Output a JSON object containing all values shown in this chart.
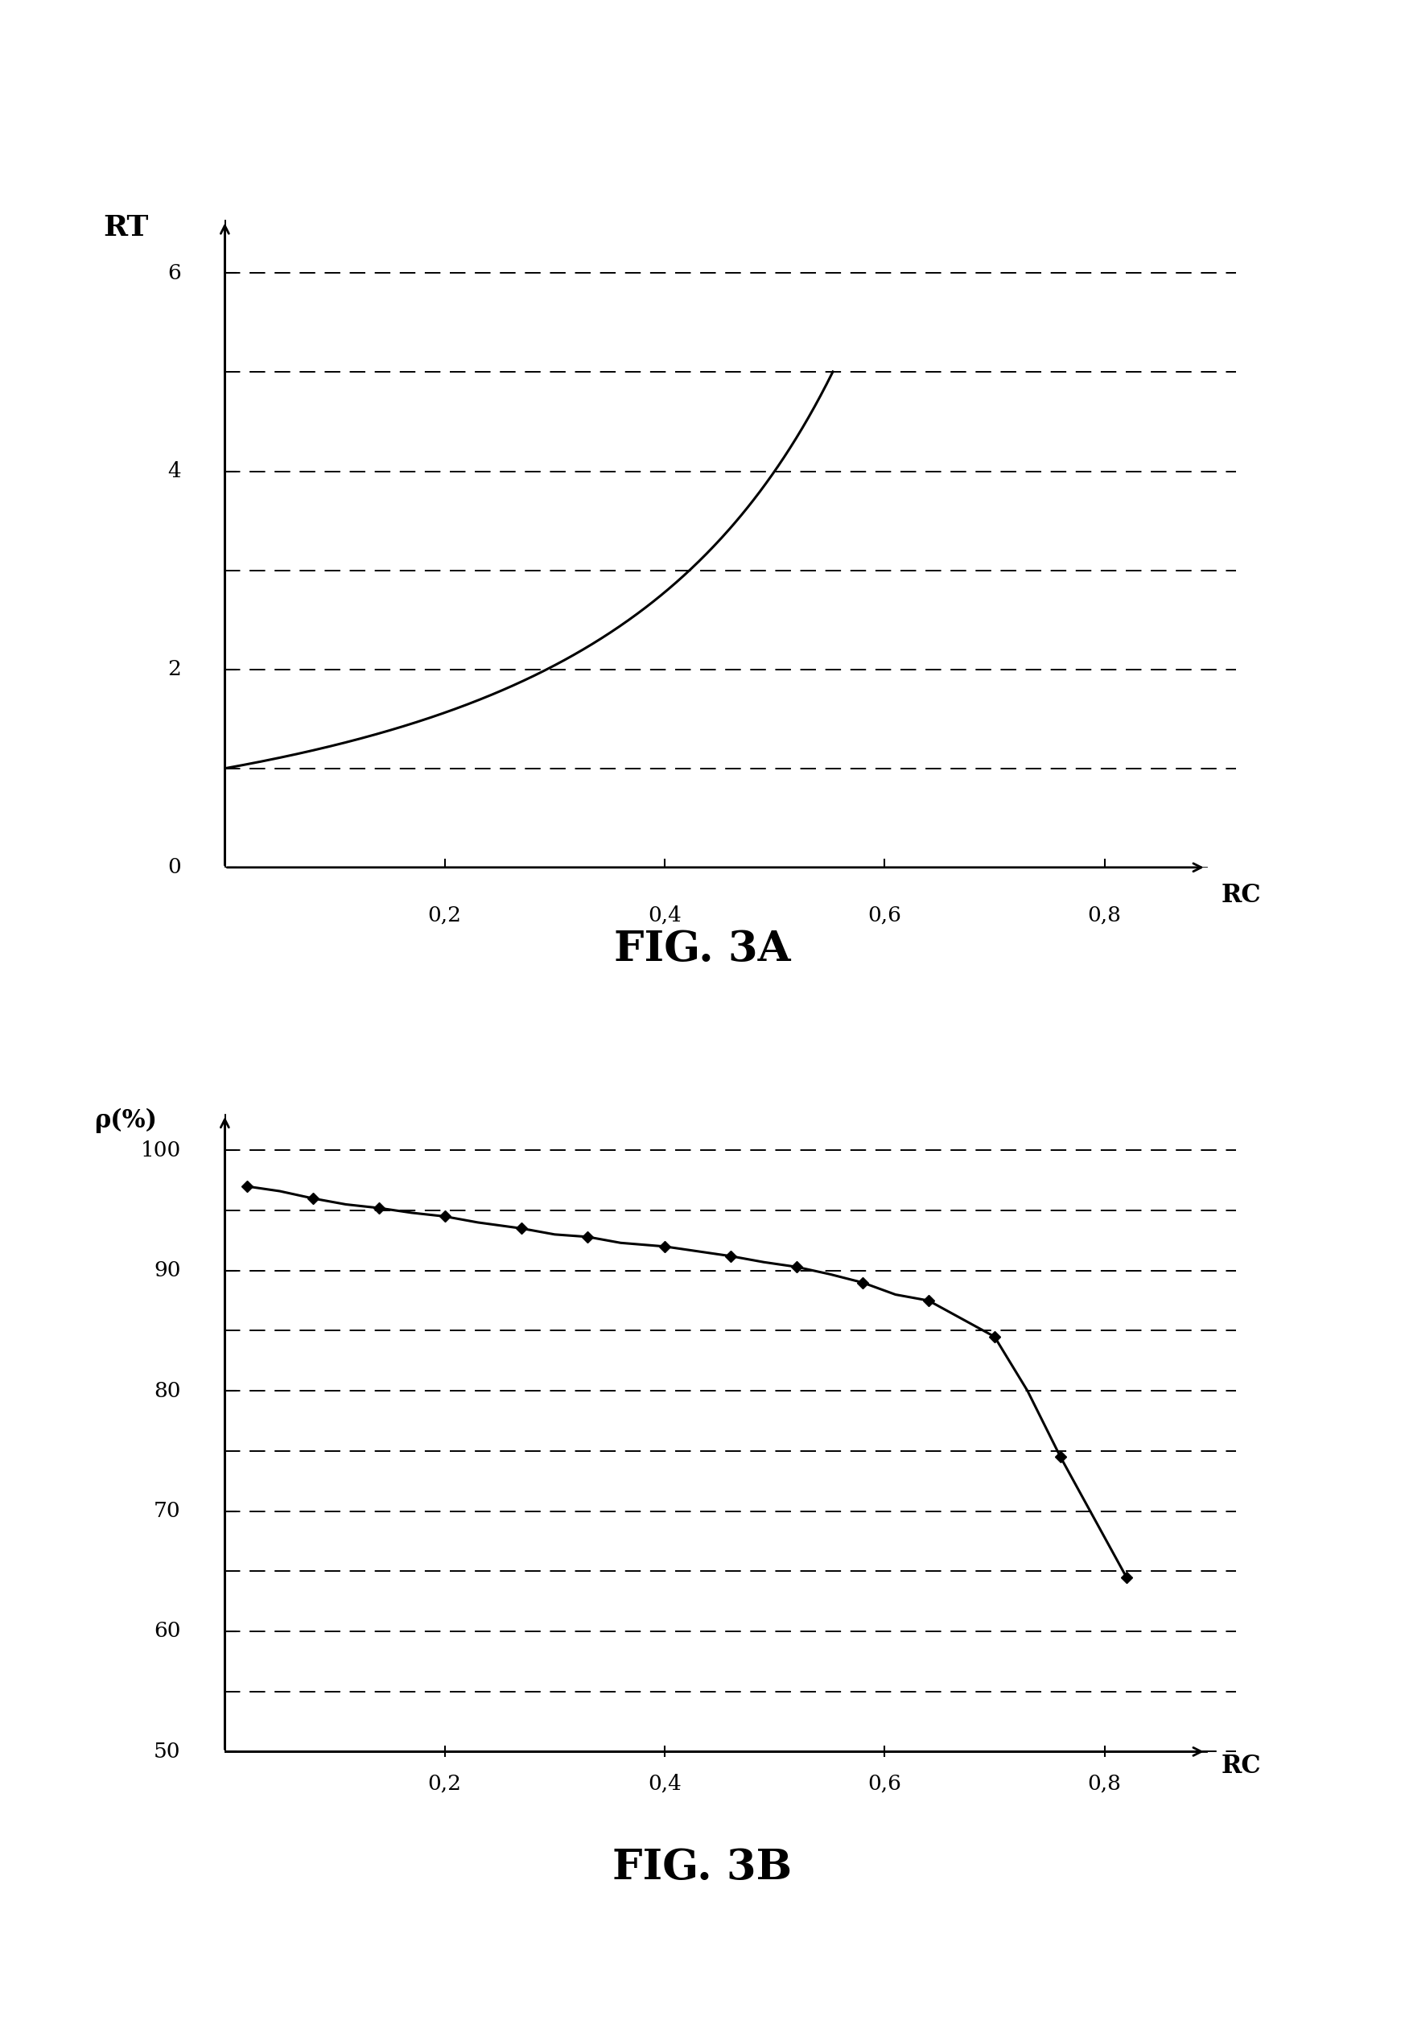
{
  "fig3a": {
    "title": "FIG. 3A",
    "ylabel": "RT",
    "xlabel": "RC",
    "xlim": [
      0,
      0.92
    ],
    "ylim": [
      0,
      6.8
    ],
    "xticks": [
      0.2,
      0.4,
      0.6,
      0.8
    ],
    "yticks": [
      0,
      2,
      4,
      6
    ],
    "grid_y": [
      1,
      2,
      3,
      4,
      5,
      6
    ],
    "curve_end": 0.553
  },
  "fig3b": {
    "title": "FIG. 3B",
    "ylabel": "ρ(%)",
    "xlabel": "RC",
    "xlim": [
      0,
      0.92
    ],
    "ylim": [
      48,
      104
    ],
    "xticks": [
      0.2,
      0.4,
      0.6,
      0.8
    ],
    "yticks": [
      50,
      60,
      70,
      80,
      90,
      100
    ],
    "grid_y": [
      50,
      55,
      60,
      65,
      70,
      75,
      80,
      85,
      90,
      95,
      100
    ],
    "marker_x": [
      0.02,
      0.08,
      0.14,
      0.2,
      0.27,
      0.33,
      0.4,
      0.46,
      0.52,
      0.58,
      0.64,
      0.7,
      0.76,
      0.82
    ],
    "marker_y": [
      97.0,
      96.0,
      95.2,
      94.5,
      93.5,
      92.8,
      92.0,
      91.2,
      90.3,
      89.0,
      87.5,
      84.5,
      74.5,
      64.5
    ],
    "curve_x": [
      0.02,
      0.05,
      0.08,
      0.11,
      0.14,
      0.17,
      0.2,
      0.23,
      0.27,
      0.3,
      0.33,
      0.36,
      0.4,
      0.43,
      0.46,
      0.49,
      0.52,
      0.55,
      0.58,
      0.61,
      0.64,
      0.67,
      0.7,
      0.73,
      0.76,
      0.79,
      0.82
    ],
    "curve_y": [
      97.0,
      96.6,
      96.0,
      95.5,
      95.2,
      94.8,
      94.5,
      94.0,
      93.5,
      93.0,
      92.8,
      92.3,
      92.0,
      91.6,
      91.2,
      90.7,
      90.3,
      89.7,
      89.0,
      88.0,
      87.5,
      86.0,
      84.5,
      80.0,
      74.5,
      69.5,
      64.5
    ]
  },
  "background_color": "#ffffff",
  "line_color": "#000000",
  "grid_color": "#000000",
  "text_color": "#000000",
  "axis_lw": 2.0,
  "curve_lw": 2.2,
  "grid_lw": 1.4,
  "tick_fontsize": 19,
  "label_fontsize": 22,
  "figcaption_fontsize": 38
}
